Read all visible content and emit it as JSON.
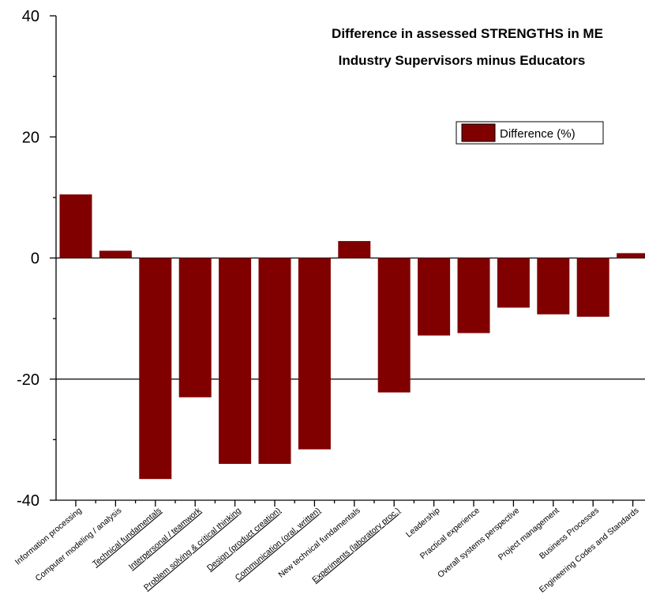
{
  "chart_data": {
    "type": "bar",
    "title": "Difference in assessed STRENGTHS in ME",
    "subtitle": "Industry Supervisors minus Educators",
    "xlabel": "",
    "ylabel": "",
    "ylim": [
      -40,
      40
    ],
    "yticks": [
      "40",
      "20",
      "0",
      "-20",
      "-40"
    ],
    "categories": [
      "Information processing",
      "Computer modeling / analysis",
      "Technical fundamentals",
      "Interpersonal / teamwork",
      "Problem solving & critical thinking",
      "Design (product creation)",
      "Communication (oral, written)",
      "New technical fundamentals",
      "Experiments (laboratory proc.)",
      "Leadership",
      "Practical experience",
      "Overall systems perspective",
      "Project management",
      "Business Processes",
      "Engineering Codes and Standards"
    ],
    "underlined_categories": [
      "Technical fundamentals",
      "Interpersonal / teamwork",
      "Problem solving & critical thinking",
      "Design (product creation)",
      "Communication (oral, written)",
      "Experiments (laboratory proc.)"
    ],
    "series": [
      {
        "name": "Difference (%)",
        "values": [
          10.5,
          1.2,
          -36.5,
          -23,
          -34,
          -34,
          -31.6,
          2.8,
          -22.2,
          -12.8,
          -12.4,
          -8.2,
          -9.3,
          -9.7,
          0.8
        ]
      }
    ],
    "reference_lines": [
      0,
      -20
    ],
    "legend": "top-right",
    "bar_color": "#800000",
    "grid": false
  }
}
